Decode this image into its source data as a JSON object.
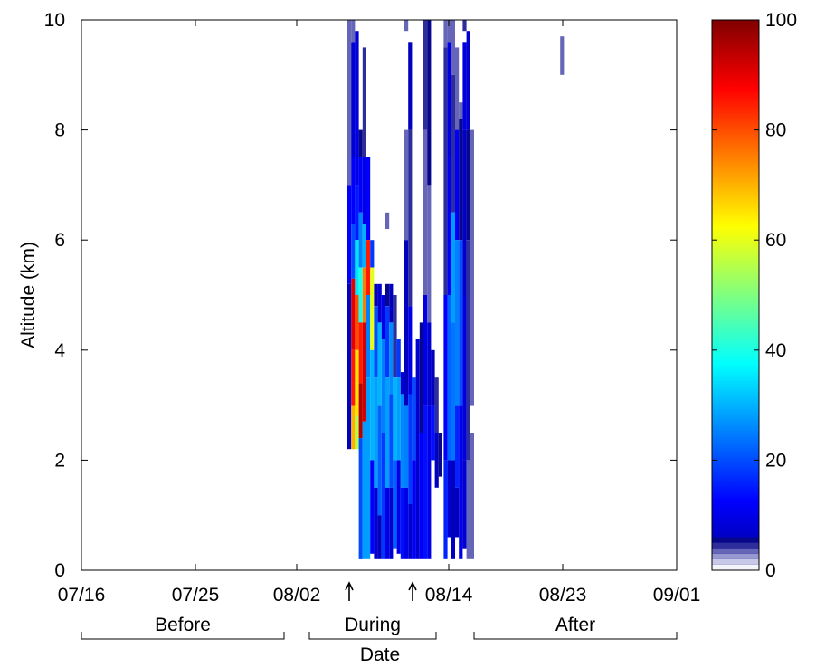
{
  "chart_data": {
    "type": "heatmap",
    "title": "",
    "xlabel": "Date",
    "ylabel": "Altitude (km)",
    "x_range": [
      "07/16",
      "09/01"
    ],
    "ylim": [
      0,
      10
    ],
    "clim": [
      0,
      100
    ],
    "grid": false,
    "x_ticks": [
      "07/16",
      "07/25",
      "08/02",
      "08/14",
      "08/23",
      "09/01"
    ],
    "y_ticks": [
      "0",
      "2",
      "4",
      "6",
      "8",
      "10"
    ],
    "colorbar_ticks": [
      "0",
      "20",
      "40",
      "60",
      "80",
      "100"
    ],
    "colormap": "jet",
    "colorbar_low_colors": [
      "#f4f4fb",
      "#c8c8e8",
      "#9898d0",
      "#6666b8",
      "#2d2d9c",
      "#07078a"
    ],
    "periods": [
      {
        "label": "Before",
        "start": "07/16",
        "end": "08/01"
      },
      {
        "label": "During",
        "start": "08/03",
        "end": "08/13"
      },
      {
        "label": "After",
        "start": "08/16",
        "end": "09/01"
      }
    ],
    "arrow_dates": [
      "08/06",
      "08/11"
    ],
    "columns_note": "each column: day (days after 07/16), [altitude_bottom_km, altitude_top_km, value] segments",
    "columns": [
      {
        "day": 21.0,
        "segments": [
          [
            7.0,
            10.0,
            3
          ],
          [
            5.2,
            7.0,
            12
          ],
          [
            2.2,
            5.2,
            6
          ]
        ]
      },
      {
        "day": 21.3,
        "segments": [
          [
            9.6,
            10.0,
            3
          ],
          [
            7.5,
            9.6,
            8
          ],
          [
            6.3,
            7.5,
            12
          ],
          [
            5.3,
            6.3,
            20
          ],
          [
            4.0,
            5.3,
            90
          ],
          [
            3.0,
            4.0,
            85
          ],
          [
            2.2,
            3.0,
            70
          ]
        ]
      },
      {
        "day": 21.6,
        "segments": [
          [
            8.2,
            9.8,
            9
          ],
          [
            7.0,
            8.2,
            10
          ],
          [
            6.0,
            7.0,
            15
          ],
          [
            5.0,
            6.0,
            35
          ],
          [
            4.0,
            5.0,
            80
          ],
          [
            2.8,
            4.0,
            65
          ],
          [
            2.2,
            2.8,
            55
          ]
        ]
      },
      {
        "day": 21.9,
        "segments": [
          [
            7.5,
            8.0,
            5
          ],
          [
            6.5,
            7.5,
            12
          ],
          [
            5.5,
            6.5,
            25
          ],
          [
            4.5,
            5.5,
            40
          ],
          [
            3.4,
            4.5,
            85
          ],
          [
            2.4,
            3.4,
            95
          ],
          [
            0.2,
            2.4,
            20
          ]
        ]
      },
      {
        "day": 22.2,
        "segments": [
          [
            7.5,
            9.5,
            4
          ],
          [
            6.3,
            7.5,
            10
          ],
          [
            5.5,
            6.3,
            30
          ],
          [
            4.5,
            5.5,
            75
          ],
          [
            2.7,
            4.5,
            92
          ],
          [
            0.2,
            2.7,
            28
          ]
        ]
      },
      {
        "day": 22.5,
        "segments": [
          [
            6.0,
            7.5,
            12
          ],
          [
            5.0,
            6.0,
            85
          ],
          [
            3.5,
            5.0,
            25
          ],
          [
            0.2,
            3.5,
            28
          ]
        ]
      },
      {
        "day": 22.8,
        "segments": [
          [
            5.5,
            6.0,
            18
          ],
          [
            4.0,
            5.5,
            60
          ],
          [
            2.0,
            4.0,
            30
          ],
          [
            0.3,
            2.0,
            12
          ]
        ]
      },
      {
        "day": 23.1,
        "segments": [
          [
            4.8,
            5.2,
            6
          ],
          [
            3.5,
            4.8,
            20
          ],
          [
            1.5,
            3.5,
            28
          ],
          [
            0.2,
            1.5,
            8
          ]
        ]
      },
      {
        "day": 23.4,
        "segments": [
          [
            4.5,
            5.2,
            8
          ],
          [
            3.0,
            4.5,
            30
          ],
          [
            1.0,
            3.0,
            22
          ],
          [
            0.2,
            1.0,
            6
          ]
        ]
      },
      {
        "day": 23.7,
        "segments": [
          [
            4.2,
            5.0,
            10
          ],
          [
            2.5,
            4.2,
            25
          ],
          [
            0.2,
            2.5,
            18
          ]
        ]
      },
      {
        "day": 24.0,
        "segments": [
          [
            6.2,
            6.5,
            3
          ],
          [
            4.8,
            5.2,
            5
          ],
          [
            3.5,
            4.8,
            18
          ],
          [
            1.5,
            3.5,
            28
          ],
          [
            0.2,
            1.5,
            10
          ]
        ]
      },
      {
        "day": 24.3,
        "segments": [
          [
            4.5,
            5.2,
            6
          ],
          [
            3.2,
            4.5,
            26
          ],
          [
            1.5,
            3.2,
            20
          ],
          [
            0.2,
            1.5,
            8
          ]
        ]
      },
      {
        "day": 24.6,
        "segments": [
          [
            3.5,
            5.0,
            4
          ],
          [
            2.0,
            3.5,
            30
          ],
          [
            0.4,
            2.0,
            22
          ]
        ]
      },
      {
        "day": 24.9,
        "segments": [
          [
            3.5,
            4.2,
            18
          ],
          [
            2.0,
            3.5,
            28
          ],
          [
            0.3,
            2.0,
            10
          ]
        ]
      },
      {
        "day": 25.2,
        "segments": [
          [
            3.2,
            3.6,
            8
          ],
          [
            1.5,
            3.2,
            26
          ],
          [
            0.2,
            1.5,
            14
          ]
        ]
      },
      {
        "day": 25.5,
        "segments": [
          [
            9.8,
            10.0,
            3
          ],
          [
            6.0,
            8.0,
            3
          ],
          [
            3.0,
            6.0,
            6
          ],
          [
            1.5,
            3.0,
            25
          ],
          [
            0.2,
            1.5,
            10
          ]
        ]
      },
      {
        "day": 25.8,
        "segments": [
          [
            8.0,
            9.6,
            6
          ],
          [
            4.8,
            8.0,
            4
          ],
          [
            3.2,
            4.8,
            10
          ],
          [
            1.2,
            3.2,
            18
          ],
          [
            0.2,
            1.2,
            8
          ]
        ]
      },
      {
        "day": 26.1,
        "segments": [
          [
            2.0,
            3.5,
            20
          ],
          [
            0.2,
            2.0,
            12
          ]
        ]
      },
      {
        "day": 26.4,
        "segments": [
          [
            0.2,
            4.2,
            8
          ]
        ]
      },
      {
        "day": 26.7,
        "segments": [
          [
            2.5,
            4.5,
            5
          ],
          [
            0.2,
            2.5,
            12
          ]
        ]
      },
      {
        "day": 27.0,
        "segments": [
          [
            8.0,
            10.0,
            4
          ],
          [
            5.0,
            8.0,
            3
          ],
          [
            3.0,
            5.0,
            10
          ],
          [
            0.2,
            3.0,
            14
          ]
        ]
      },
      {
        "day": 27.3,
        "segments": [
          [
            7.0,
            10.0,
            5
          ],
          [
            4.5,
            7.0,
            3
          ],
          [
            3.0,
            4.5,
            8
          ],
          [
            0.2,
            3.0,
            10
          ]
        ]
      },
      {
        "day": 27.6,
        "segments": [
          [
            3.0,
            4.0,
            6
          ],
          [
            2.0,
            3.0,
            14
          ]
        ]
      },
      {
        "day": 27.9,
        "segments": [
          [
            2.5,
            3.5,
            4
          ],
          [
            1.5,
            2.5,
            6
          ]
        ]
      },
      {
        "day": 28.2,
        "segments": [
          [
            1.7,
            2.5,
            5
          ]
        ]
      },
      {
        "day": 28.6,
        "segments": [
          [
            9.5,
            10.0,
            3
          ],
          [
            5.0,
            9.5,
            4
          ],
          [
            2.0,
            5.0,
            12
          ],
          [
            0.2,
            2.0,
            16
          ]
        ]
      },
      {
        "day": 28.9,
        "segments": [
          [
            9.6,
            10.0,
            3
          ],
          [
            7.5,
            9.6,
            10
          ],
          [
            5.0,
            7.5,
            12
          ],
          [
            2.0,
            5.0,
            22
          ],
          [
            0.6,
            2.0,
            8
          ]
        ]
      },
      {
        "day": 29.2,
        "segments": [
          [
            9.0,
            10.0,
            3
          ],
          [
            6.5,
            9.0,
            4
          ],
          [
            4.5,
            6.5,
            28
          ],
          [
            2.0,
            4.5,
            24
          ],
          [
            0.2,
            2.0,
            6
          ]
        ]
      },
      {
        "day": 29.5,
        "segments": [
          [
            8.0,
            9.5,
            3
          ],
          [
            6.0,
            8.0,
            12
          ],
          [
            3.0,
            6.0,
            25
          ],
          [
            1.5,
            3.0,
            16
          ],
          [
            0.6,
            1.5,
            6
          ]
        ]
      },
      {
        "day": 29.8,
        "segments": [
          [
            8.2,
            8.5,
            3
          ],
          [
            6.0,
            8.2,
            5
          ],
          [
            3.0,
            6.0,
            20
          ],
          [
            0.2,
            3.0,
            10
          ]
        ]
      },
      {
        "day": 30.1,
        "segments": [
          [
            9.8,
            10.0,
            4
          ],
          [
            8.0,
            9.6,
            9
          ],
          [
            5.0,
            8.0,
            7
          ],
          [
            2.0,
            5.0,
            9
          ],
          [
            0.4,
            2.0,
            8
          ]
        ]
      },
      {
        "day": 30.4,
        "segments": [
          [
            8.0,
            9.8,
            8
          ],
          [
            6.0,
            8.0,
            5
          ],
          [
            2.0,
            6.0,
            4
          ],
          [
            0.2,
            2.0,
            3
          ]
        ]
      },
      {
        "day": 30.7,
        "segments": [
          [
            3.0,
            8.0,
            3
          ],
          [
            0.2,
            2.5,
            3
          ]
        ]
      },
      {
        "day": 37.8,
        "segments": [
          [
            9.0,
            9.7,
            3
          ]
        ]
      }
    ]
  }
}
